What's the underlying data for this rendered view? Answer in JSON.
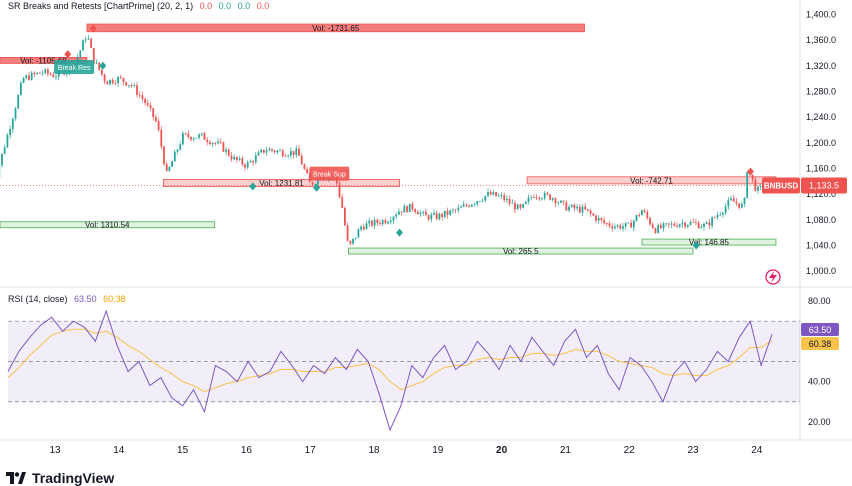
{
  "header": {
    "title": "SR Breaks and Retests [ChartPrime] (20, 2, 1)",
    "values": [
      "0.0",
      "0.0",
      "0.0",
      "0.0"
    ]
  },
  "rsi_header": {
    "label": "RSI (14, close)",
    "value1": "63.50",
    "value2": "60.38"
  },
  "branding": {
    "name": "TradingView"
  },
  "colors": {
    "up": "#26a69a",
    "down": "#ef5350",
    "rsi": "#7e57c2",
    "rsi_ma": "#f7c34a",
    "support": "#4caf50",
    "resistance": "#ef5350",
    "price_badge": "#ef5350"
  },
  "chart_data": [
    {
      "type": "candlestick",
      "symbol": "BNBUSD",
      "last_price": "1,133.5",
      "ylim": [
        980,
        1410
      ],
      "y_ticks": [
        "1,400.0",
        "1,360.0",
        "1,320.0",
        "1,280.0",
        "1,240.0",
        "1,200.0",
        "1,160.0",
        "1,120.0",
        "1,080.0",
        "1,040.0",
        "1,000.0"
      ],
      "x_ticks": [
        "13",
        "14",
        "15",
        "16",
        "17",
        "18",
        "19",
        "20",
        "21",
        "22",
        "23",
        "24"
      ],
      "price_path": [
        [
          "12",
          1120
        ],
        [
          "12.5",
          1300
        ],
        [
          "12.8",
          1310
        ],
        [
          "13",
          1305
        ],
        [
          "13.3",
          1320
        ],
        [
          "13.5",
          1370
        ],
        [
          "13.6",
          1330
        ],
        [
          "13.8",
          1295
        ],
        [
          "14",
          1300
        ],
        [
          "14.2",
          1290
        ],
        [
          "14.4",
          1265
        ],
        [
          "14.6",
          1230
        ],
        [
          "14.75",
          1150
        ],
        [
          "15",
          1210
        ],
        [
          "15.3",
          1210
        ],
        [
          "15.6",
          1195
        ],
        [
          "15.8",
          1175
        ],
        [
          "16",
          1165
        ],
        [
          "16.3",
          1190
        ],
        [
          "16.6",
          1185
        ],
        [
          "16.8",
          1185
        ],
        [
          "17",
          1135
        ],
        [
          "17.2",
          1150
        ],
        [
          "17.4",
          1145
        ],
        [
          "17.5",
          1100
        ],
        [
          "17.6",
          1035
        ],
        [
          "17.8",
          1070
        ],
        [
          "18",
          1075
        ],
        [
          "18.2",
          1080
        ],
        [
          "18.4",
          1095
        ],
        [
          "18.6",
          1100
        ],
        [
          "18.8",
          1085
        ],
        [
          "19",
          1085
        ],
        [
          "19.3",
          1095
        ],
        [
          "19.6",
          1110
        ],
        [
          "19.8",
          1120
        ],
        [
          "20",
          1115
        ],
        [
          "20.3",
          1095
        ],
        [
          "20.5",
          1120
        ],
        [
          "20.8",
          1115
        ],
        [
          "21",
          1100
        ],
        [
          "21.3",
          1095
        ],
        [
          "21.6",
          1075
        ],
        [
          "21.8",
          1070
        ],
        [
          "22",
          1070
        ],
        [
          "22.2",
          1095
        ],
        [
          "22.4",
          1065
        ],
        [
          "22.6",
          1070
        ],
        [
          "22.8",
          1075
        ],
        [
          "23",
          1075
        ],
        [
          "23.2",
          1070
        ],
        [
          "23.4",
          1090
        ],
        [
          "23.6",
          1110
        ],
        [
          "23.8",
          1100
        ],
        [
          "23.85",
          1160
        ],
        [
          "24",
          1125
        ],
        [
          "24.2",
          1133.5
        ]
      ],
      "zones": [
        {
          "kind": "resistance",
          "label": "Vol: -1731.65",
          "from": "13.5",
          "to": "21.3",
          "low": 1373,
          "high": 1385
        },
        {
          "kind": "resistance",
          "label": "Vol: -1105.68",
          "from": "11.9",
          "to": "13.5",
          "low": 1326,
          "high": 1333
        },
        {
          "kind": "resistance",
          "label": "Vol: 1231.81",
          "from": "14.7",
          "to": "18.4",
          "low": 1132,
          "high": 1143
        },
        {
          "kind": "resistance",
          "label": "Vol: -742.71",
          "from": "20.4",
          "to": "24.3",
          "low": 1136,
          "high": 1147
        },
        {
          "kind": "support",
          "label": "Vol: 1310.54",
          "from": "11.9",
          "to": "15.5",
          "low": 1070,
          "high": 1077
        },
        {
          "kind": "support",
          "label": "Vol: 265.5",
          "from": "17.6",
          "to": "23",
          "low": 1028,
          "high": 1036
        },
        {
          "kind": "support",
          "label": "Vol: 146.85",
          "from": "22.2",
          "to": "24.3",
          "low": 1045,
          "high": 1050
        }
      ],
      "signals": [
        {
          "label": "Break Res",
          "x": "13.3",
          "y": 1318,
          "color": "#26a69a"
        },
        {
          "label": "Break Sup",
          "x": "17.3",
          "y": 1152,
          "color": "#ef5350"
        }
      ],
      "markers": [
        {
          "shape": "diamond",
          "x": "13.2",
          "y": 1338,
          "color": "#ef5350"
        },
        {
          "shape": "diamond",
          "x": "13.6",
          "y": 1378,
          "color": "#ef5350"
        },
        {
          "shape": "diamond",
          "x": "13.75",
          "y": 1320,
          "color": "#26a69a"
        },
        {
          "shape": "diamond",
          "x": "16.1",
          "y": 1132,
          "color": "#26a69a"
        },
        {
          "shape": "diamond",
          "x": "17.1",
          "y": 1130,
          "color": "#26a69a"
        },
        {
          "shape": "diamond",
          "x": "18.4",
          "y": 1060,
          "color": "#26a69a"
        },
        {
          "shape": "diamond",
          "x": "23.05",
          "y": 1040,
          "color": "#26a69a"
        },
        {
          "shape": "diamond",
          "x": "23.9",
          "y": 1155,
          "color": "#ef5350"
        }
      ]
    },
    {
      "type": "line",
      "title": "RSI (14, close)",
      "ylim": [
        12,
        85
      ],
      "y_ticks": [
        "80.00",
        "60.00",
        "40.00",
        "20.00"
      ],
      "bands": {
        "upper": 70,
        "middle": 50,
        "lower": 30
      },
      "series": [
        {
          "name": "RSI",
          "values": [
            45,
            55,
            62,
            68,
            72,
            65,
            70,
            67,
            60,
            75,
            58,
            45,
            50,
            38,
            42,
            32,
            28,
            36,
            25,
            48,
            45,
            40,
            50,
            42,
            45,
            55,
            48,
            40,
            48,
            44,
            52,
            46,
            56,
            50,
            34,
            16,
            28,
            48,
            42,
            52,
            58,
            46,
            50,
            60,
            54,
            46,
            58,
            50,
            62,
            55,
            48,
            60,
            66,
            52,
            58,
            44,
            36,
            52,
            48,
            40,
            30,
            44,
            50,
            40,
            46,
            55,
            50,
            62,
            70,
            48,
            63.5
          ]
        },
        {
          "name": "MA",
          "values": [
            42,
            47,
            53,
            58,
            63,
            65,
            66,
            66,
            64,
            65,
            62,
            58,
            55,
            51,
            47,
            44,
            40,
            38,
            35,
            37,
            39,
            40,
            42,
            43,
            44,
            46,
            46,
            45,
            45,
            45,
            47,
            47,
            48,
            49,
            46,
            40,
            36,
            38,
            40,
            44,
            47,
            48,
            48,
            51,
            52,
            51,
            52,
            52,
            54,
            54,
            53,
            54,
            56,
            55,
            55,
            53,
            50,
            49,
            48,
            47,
            44,
            43,
            44,
            43,
            43,
            46,
            48,
            52,
            57,
            57,
            60.38
          ]
        }
      ]
    }
  ]
}
